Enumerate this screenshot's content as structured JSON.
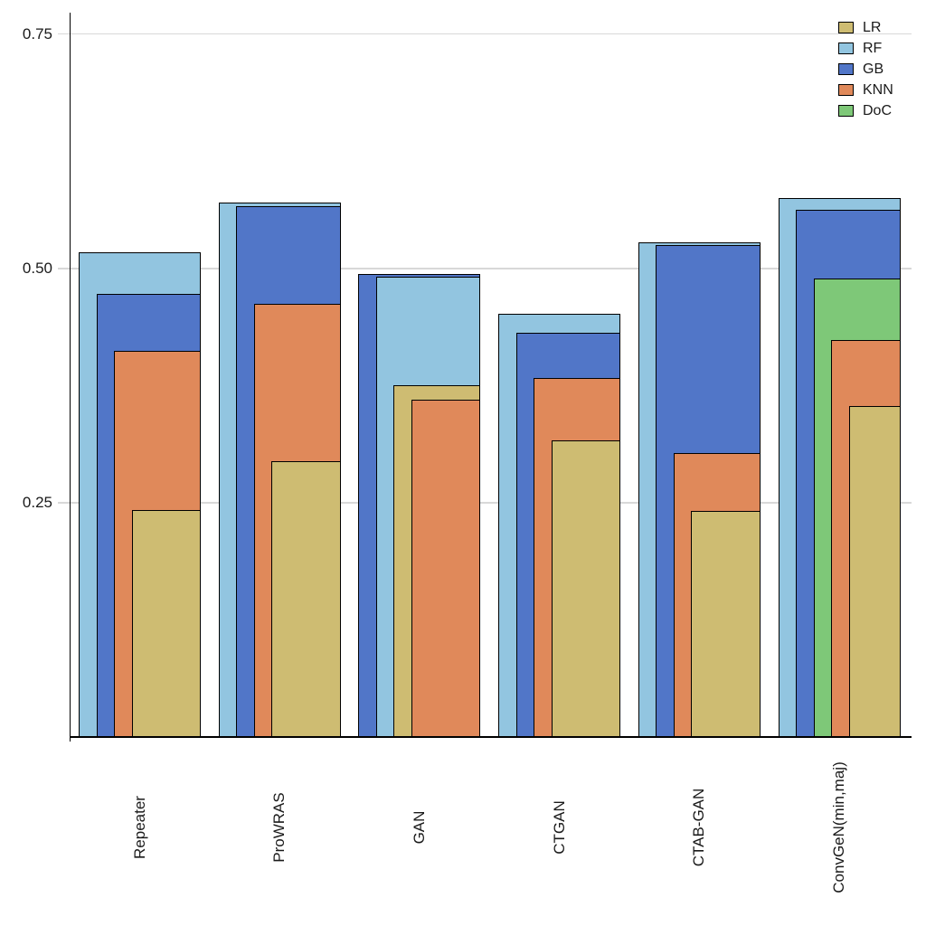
{
  "chart_data": {
    "type": "bar",
    "variant": "overlapping-bars-sorted-by-height",
    "title": "",
    "xlabel": "",
    "ylabel": "",
    "categories": [
      "Repeater",
      "ProWRAS",
      "GAN",
      "CTGAN",
      "CTAB-GAN",
      "ConvGeN(min,maj)"
    ],
    "series": [
      {
        "name": "LR",
        "color": "#CEBC72",
        "values": [
          0.242,
          0.294,
          0.375,
          0.317,
          0.241,
          0.353
        ]
      },
      {
        "name": "RF",
        "color": "#92C5E0",
        "values": [
          0.517,
          0.57,
          0.491,
          0.452,
          0.528,
          0.575
        ]
      },
      {
        "name": "GB",
        "color": "#5176C8",
        "values": [
          0.473,
          0.566,
          0.494,
          0.431,
          0.525,
          0.563
        ]
      },
      {
        "name": "KNN",
        "color": "#E0895A",
        "values": [
          0.412,
          0.462,
          0.36,
          0.383,
          0.303,
          0.424
        ]
      },
      {
        "name": "DoC",
        "color": "#7EC878",
        "values": [
          null,
          null,
          null,
          null,
          null,
          0.489
        ]
      }
    ],
    "legend": {
      "position": "top-right",
      "entries": [
        "LR",
        "RF",
        "GB",
        "KNN",
        "DoC"
      ]
    },
    "y_axis": {
      "ticks": [
        {
          "label": "0.75",
          "value": 0.75
        },
        {
          "label": "0.50",
          "value": 0.5
        },
        {
          "label": "0.25",
          "value": 0.25
        }
      ],
      "lim": [
        0,
        0.772
      ],
      "grid": true
    },
    "colors": {
      "background": "#ffffff",
      "gridline": "#d8d8d8",
      "axis": "#000000",
      "text": "#1a1a1a",
      "bar_border": "#000000"
    }
  }
}
